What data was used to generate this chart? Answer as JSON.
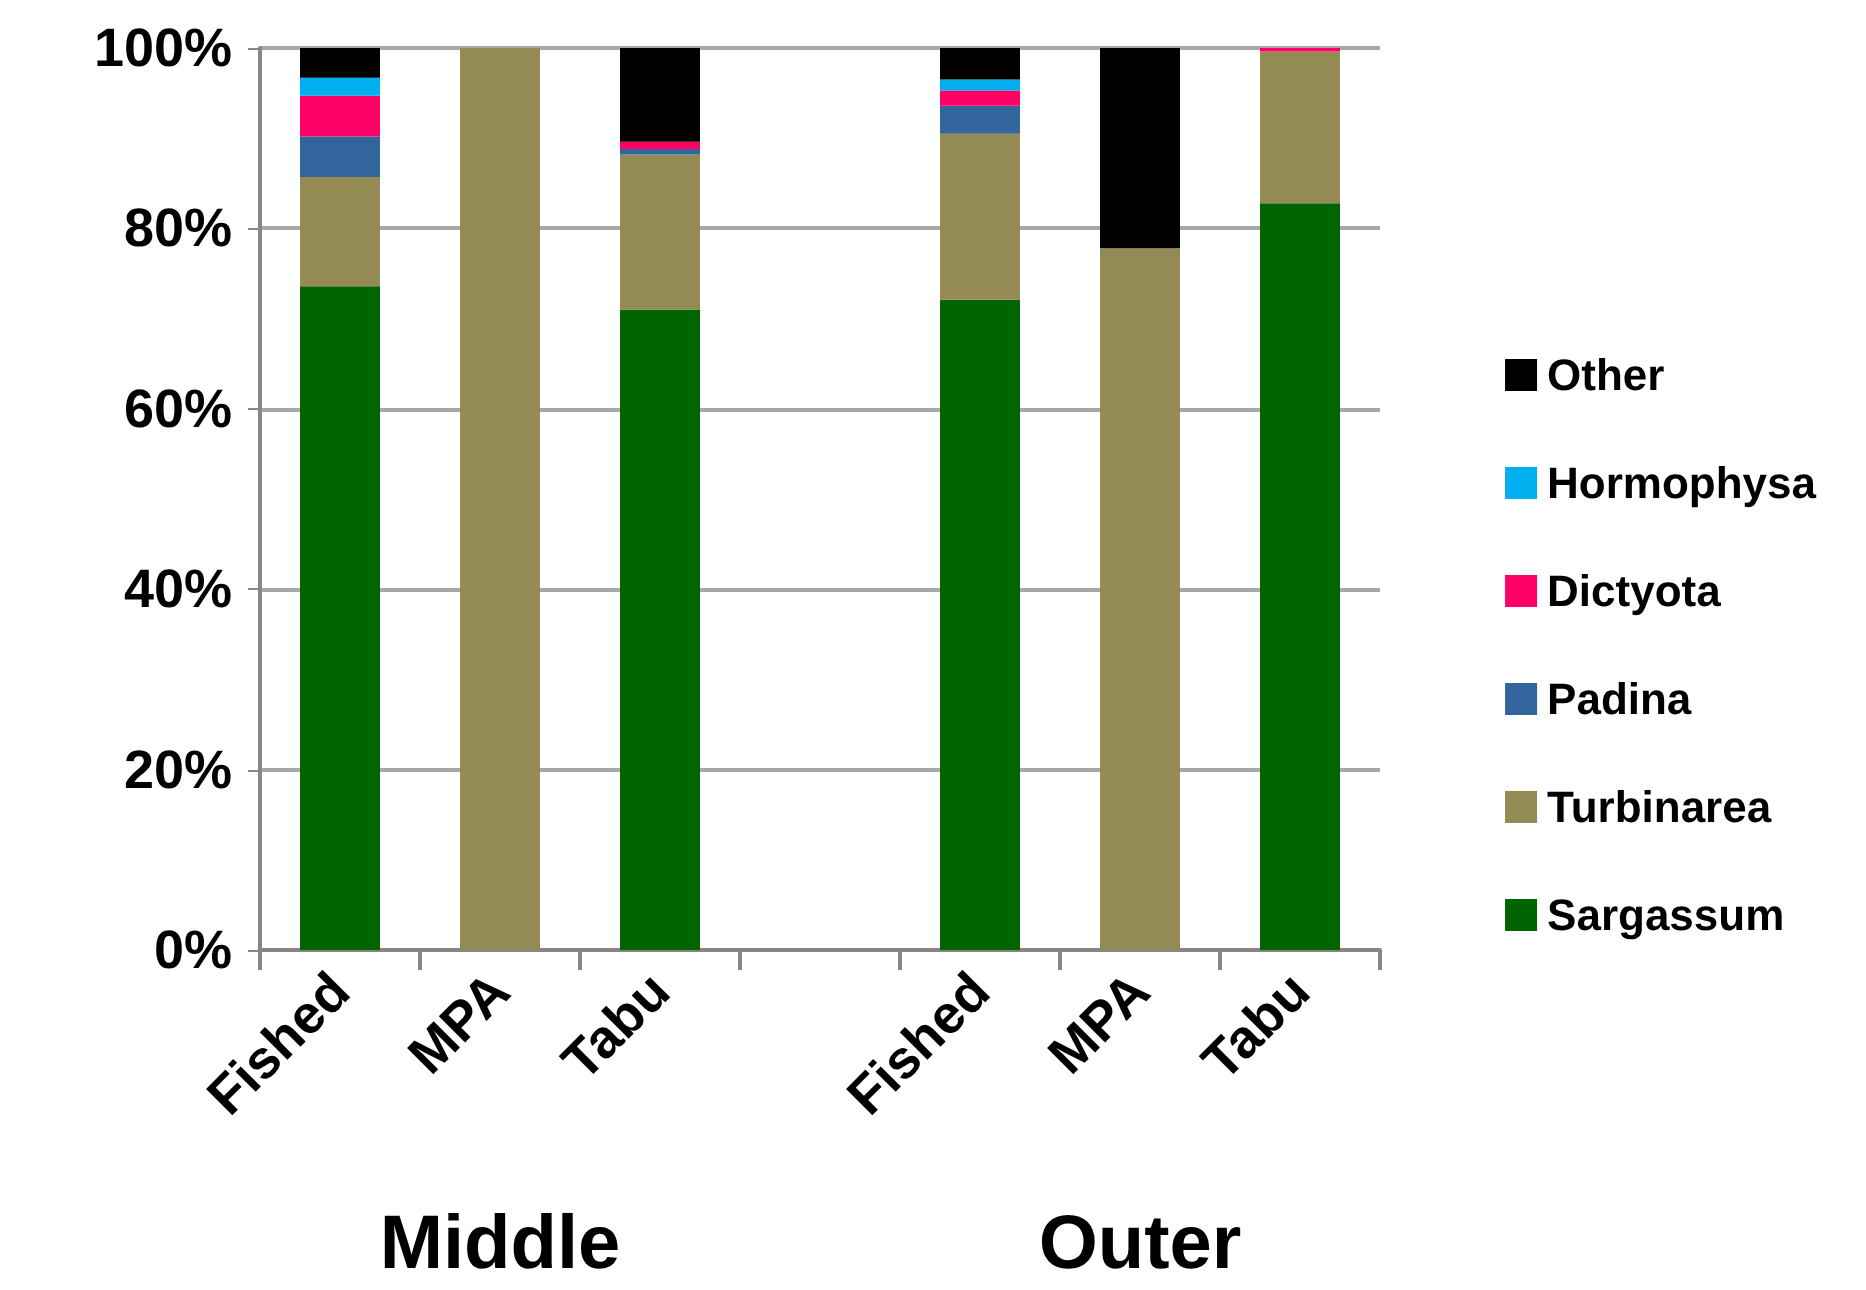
{
  "chart_data": {
    "type": "bar",
    "stacked": true,
    "categories": [
      "Fished",
      "MPA",
      "Tabu",
      null,
      "Fished",
      "MPA",
      "Tabu"
    ],
    "series": [
      {
        "name": "Sargassum",
        "color": "#006400",
        "values": [
          73.6,
          null,
          71.0,
          null,
          72.1,
          null,
          82.8
        ]
      },
      {
        "name": "Turbinarea",
        "color": "#948a54",
        "values": [
          12.1,
          100,
          17.2,
          null,
          18.4,
          77.8,
          16.8
        ]
      },
      {
        "name": "Padina",
        "color": "#31659c",
        "values": [
          4.5,
          null,
          0.6,
          null,
          3.1,
          null,
          null
        ]
      },
      {
        "name": "Dictyota",
        "color": "#ff0066",
        "values": [
          4.5,
          null,
          0.8,
          null,
          1.7,
          null,
          0.4
        ]
      },
      {
        "name": "Hormophysa",
        "color": "#00b0f0",
        "values": [
          2.0,
          null,
          null,
          null,
          1.2,
          null,
          null
        ]
      },
      {
        "name": "Other",
        "color": "#000000",
        "values": [
          3.3,
          null,
          10.4,
          null,
          3.5,
          22.2,
          null
        ]
      }
    ],
    "annotations": [
      "Middle",
      "Outer"
    ],
    "ylim": [
      0,
      100
    ],
    "yticks": [
      {
        "value": 0,
        "label": "0%"
      },
      {
        "value": 20,
        "label": "20%"
      },
      {
        "value": 40,
        "label": "40%"
      },
      {
        "value": 60,
        "label": "60%"
      },
      {
        "value": 80,
        "label": "80%"
      },
      {
        "value": 100,
        "label": "100%"
      }
    ],
    "grid": "y",
    "legend": "right"
  }
}
